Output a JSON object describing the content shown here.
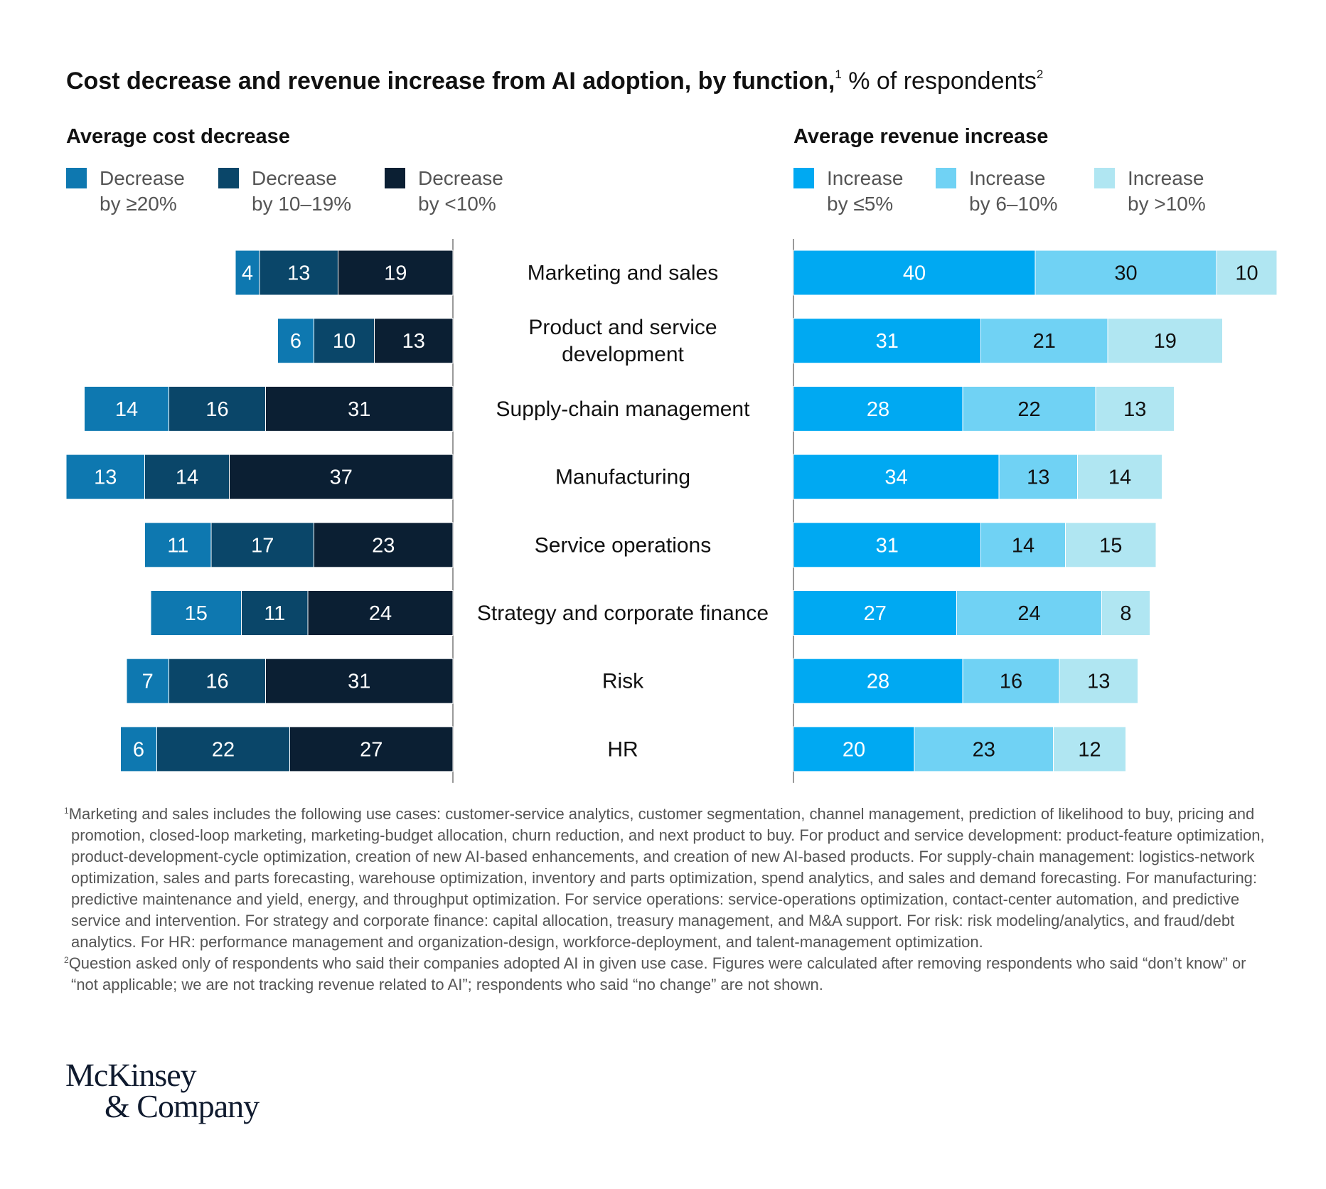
{
  "title": {
    "bold": "Cost decrease and revenue increase from AI adoption, by function,",
    "sup1": "1",
    "regular": " % of respondents",
    "sup2": "2"
  },
  "left_panel": {
    "heading": "Average cost decrease",
    "legend": [
      {
        "line1": "Decrease",
        "line2": "by ≥20%",
        "color": "#0e78b0"
      },
      {
        "line1": "Decrease",
        "line2": "by 10–19%",
        "color": "#0a4669"
      },
      {
        "line1": "Decrease",
        "line2": "by <10%",
        "color": "#0b1f33"
      }
    ]
  },
  "right_panel": {
    "heading": "Average revenue increase",
    "legend": [
      {
        "line1": "Increase",
        "line2": "by ≤5%",
        "color": "#00a9f2"
      },
      {
        "line1": "Increase",
        "line2": "by 6–10%",
        "color": "#70d2f4"
      },
      {
        "line1": "Increase",
        "line2": "by >10%",
        "color": "#b0e6f2"
      }
    ]
  },
  "chart_data": {
    "type": "bar",
    "orientation": "horizontal-stacked-diverging",
    "categories": [
      "Marketing and sales",
      "Product and service development",
      "Supply-chain management",
      "Manufacturing",
      "Service operations",
      "Strategy and corporate finance",
      "Risk",
      "HR"
    ],
    "cost_series": [
      {
        "name": "Decrease by ≥20%",
        "values": [
          4,
          6,
          14,
          13,
          11,
          15,
          7,
          6
        ]
      },
      {
        "name": "Decrease by 10–19%",
        "values": [
          13,
          10,
          16,
          14,
          17,
          11,
          16,
          22
        ]
      },
      {
        "name": "Decrease by <10%",
        "values": [
          19,
          13,
          31,
          37,
          23,
          24,
          31,
          27
        ]
      }
    ],
    "revenue_series": [
      {
        "name": "Increase by ≤5%",
        "values": [
          40,
          31,
          28,
          34,
          31,
          27,
          28,
          20
        ]
      },
      {
        "name": "Increase by 6–10%",
        "values": [
          30,
          21,
          22,
          13,
          14,
          24,
          16,
          23
        ]
      },
      {
        "name": "Increase by >10%",
        "values": [
          10,
          19,
          13,
          14,
          15,
          8,
          13,
          12
        ]
      }
    ],
    "cost_colors": [
      "#0e78b0",
      "#0a4669",
      "#0b1f33"
    ],
    "revenue_colors": [
      "#00a9f2",
      "#70d2f4",
      "#b0e6f2"
    ],
    "cost_label_colors": [
      "#ffffff",
      "#ffffff",
      "#ffffff"
    ],
    "revenue_label_colors": [
      "#ffffff",
      "#111111",
      "#111111"
    ],
    "xlim": [
      0,
      80
    ]
  },
  "footnotes": [
    {
      "marker": "1",
      "text": "Marketing and sales includes the following use cases: customer-service analytics, customer segmentation, channel management, prediction of likelihood to buy, pricing and promotion, closed-loop marketing, marketing-budget allocation, churn reduction, and next product to buy. For product and service development: product-feature optimization, product-development-cycle optimization, creation of new AI-based enhancements, and creation of new AI-based products. For supply-chain management: logistics-network optimization, sales and parts forecasting, warehouse optimization, inventory and parts optimization, spend analytics, and sales and demand forecasting. For manufacturing: predictive maintenance and yield, energy, and throughput optimization. For service operations: service-operations optimization, contact-center automation, and predictive service and intervention. For strategy and corporate finance: capital allocation, treasury management, and M&A support. For risk: risk modeling/analytics, and fraud/debt analytics. For HR: performance management and organization-design, workforce-deployment, and talent-management optimization."
    },
    {
      "marker": "2",
      "text": "Question asked only of respondents who said their companies adopted AI in given use case. Figures were calculated after removing respondents who said “don’t know” or “not applicable; we are not tracking revenue related to AI”; respondents who said “no change” are not shown."
    }
  ],
  "logo": {
    "line1": "McKinsey",
    "line2": "& Company"
  }
}
